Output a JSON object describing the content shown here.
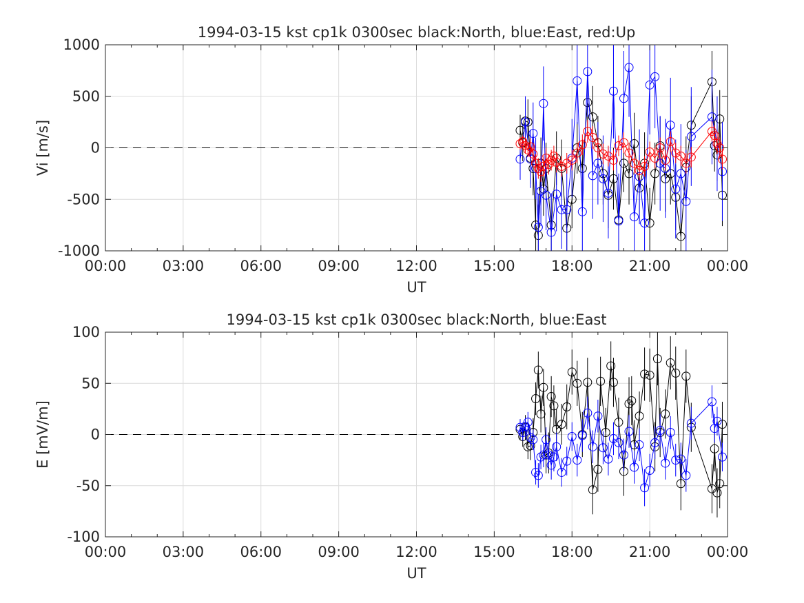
{
  "chart_data": [
    {
      "type": "scatter",
      "title": "1994-03-15 kst cp1k 0300sec black:North, blue:East, red:Up",
      "xlabel": "UT",
      "ylabel": "Vi [m/s]",
      "xlim": [
        0,
        24
      ],
      "ylim": [
        -1000,
        1000
      ],
      "xticks": [
        0,
        3,
        6,
        9,
        12,
        15,
        18,
        21,
        24
      ],
      "xtick_labels": [
        "00:00",
        "03:00",
        "06:00",
        "09:00",
        "12:00",
        "15:00",
        "18:00",
        "21:00",
        "00:00"
      ],
      "yticks": [
        -1000,
        -500,
        0,
        500,
        1000
      ],
      "ytick_labels": [
        "-1000",
        "-500",
        "0",
        "500",
        "1000"
      ],
      "grid": true,
      "zero_line": true,
      "series": [
        {
          "color": "#000000",
          "x": [
            16.0,
            16.1,
            16.2,
            16.3,
            16.4,
            16.5,
            16.6,
            16.7,
            16.8,
            16.9,
            17.0,
            17.2,
            17.4,
            17.6,
            17.8,
            18.0,
            18.2,
            18.4,
            18.6,
            18.8,
            19.0,
            19.2,
            19.4,
            19.6,
            19.8,
            20.0,
            20.2,
            20.4,
            20.6,
            20.8,
            21.0,
            21.2,
            21.4,
            21.6,
            21.8,
            22.0,
            22.2,
            22.4,
            22.6,
            23.4,
            23.5,
            23.6,
            23.7,
            23.8
          ],
          "y": [
            170,
            50,
            260,
            250,
            -100,
            -200,
            -750,
            -850,
            -150,
            -400,
            -200,
            -750,
            -100,
            -200,
            -780,
            -500,
            0,
            -200,
            440,
            300,
            50,
            -250,
            -460,
            -300,
            -700,
            -150,
            -250,
            40,
            -390,
            -150,
            -730,
            -250,
            20,
            -300,
            -250,
            -480,
            -860,
            -190,
            220,
            640,
            20,
            -70,
            280,
            -460
          ],
          "err": [
            150,
            180,
            200,
            220,
            250,
            260,
            280,
            300,
            250,
            260,
            250,
            300,
            260,
            280,
            300,
            280,
            250,
            280,
            320,
            300,
            260,
            300,
            320,
            300,
            340,
            280,
            300,
            300,
            320,
            300,
            340,
            300,
            280,
            320,
            300,
            320,
            340,
            300,
            280,
            300,
            250,
            250,
            280,
            300
          ]
        },
        {
          "color": "#0000ff",
          "x": [
            16.0,
            16.2,
            16.4,
            16.5,
            16.6,
            16.7,
            16.8,
            16.9,
            17.0,
            17.2,
            17.4,
            17.6,
            17.8,
            18.0,
            18.2,
            18.4,
            18.6,
            18.8,
            19.0,
            19.2,
            19.4,
            19.6,
            19.8,
            20.0,
            20.2,
            20.4,
            20.6,
            20.8,
            21.0,
            21.2,
            21.4,
            21.6,
            21.8,
            22.0,
            22.2,
            22.4,
            22.6,
            23.4,
            23.6,
            23.8
          ],
          "y": [
            -110,
            250,
            -110,
            140,
            -200,
            -770,
            -420,
            430,
            -460,
            -820,
            -450,
            -600,
            -600,
            -100,
            650,
            -620,
            740,
            -270,
            -150,
            -300,
            -440,
            550,
            -710,
            480,
            780,
            -670,
            -280,
            -730,
            610,
            690,
            -150,
            -200,
            220,
            -400,
            -250,
            -520,
            110,
            300,
            40,
            -230
          ],
          "err": [
            200,
            250,
            280,
            300,
            300,
            320,
            340,
            360,
            340,
            380,
            360,
            380,
            400,
            380,
            420,
            400,
            440,
            420,
            400,
            420,
            440,
            460,
            460,
            460,
            480,
            460,
            460,
            480,
            480,
            500,
            460,
            480,
            460,
            480,
            480,
            500,
            480,
            460,
            460,
            480
          ]
        },
        {
          "color": "#ff0000",
          "x": [
            16.0,
            16.1,
            16.2,
            16.3,
            16.4,
            16.5,
            16.6,
            16.7,
            16.8,
            16.9,
            17.0,
            17.1,
            17.2,
            17.3,
            17.4,
            17.6,
            17.8,
            18.0,
            18.2,
            18.4,
            18.6,
            18.8,
            19.0,
            19.2,
            19.4,
            19.6,
            19.8,
            20.0,
            20.2,
            20.4,
            20.6,
            20.8,
            21.0,
            21.2,
            21.4,
            21.6,
            21.8,
            22.0,
            22.2,
            22.4,
            22.6,
            23.4,
            23.5,
            23.6,
            23.7,
            23.8
          ],
          "y": [
            40,
            60,
            20,
            -20,
            10,
            -60,
            -150,
            -200,
            -230,
            -180,
            -100,
            -160,
            -120,
            -80,
            -140,
            -180,
            -150,
            -120,
            -50,
            30,
            160,
            100,
            0,
            -60,
            -80,
            -120,
            20,
            50,
            -50,
            -150,
            -220,
            -180,
            -40,
            -100,
            0,
            -120,
            60,
            -50,
            -80,
            -150,
            -90,
            160,
            120,
            40,
            0,
            -110
          ],
          "err": [
            60,
            60,
            70,
            70,
            80,
            90,
            90,
            100,
            100,
            100,
            100,
            100,
            100,
            100,
            100,
            100,
            100,
            100,
            100,
            100,
            110,
            110,
            100,
            100,
            100,
            100,
            100,
            100,
            100,
            100,
            100,
            100,
            100,
            100,
            100,
            100,
            100,
            100,
            100,
            100,
            100,
            100,
            100,
            100,
            100,
            100
          ]
        }
      ]
    },
    {
      "type": "scatter",
      "title": "1994-03-15 kst cp1k 0300sec black:North, blue:East",
      "xlabel": "UT",
      "ylabel": "E [mV/m]",
      "xlim": [
        0,
        24
      ],
      "ylim": [
        -100,
        100
      ],
      "xticks": [
        0,
        3,
        6,
        9,
        12,
        15,
        18,
        21,
        24
      ],
      "xtick_labels": [
        "00:00",
        "03:00",
        "06:00",
        "09:00",
        "12:00",
        "15:00",
        "18:00",
        "21:00",
        "00:00"
      ],
      "yticks": [
        -100,
        -50,
        0,
        50,
        100
      ],
      "ytick_labels": [
        "-100",
        "-50",
        "0",
        "50",
        "100"
      ],
      "grid": true,
      "zero_line": true,
      "series": [
        {
          "color": "#000000",
          "x": [
            16.0,
            16.1,
            16.2,
            16.3,
            16.4,
            16.5,
            16.6,
            16.7,
            16.8,
            16.9,
            17.0,
            17.1,
            17.2,
            17.3,
            17.4,
            17.6,
            17.8,
            18.0,
            18.2,
            18.4,
            18.6,
            18.8,
            19.0,
            19.1,
            19.3,
            19.5,
            19.6,
            19.8,
            20.0,
            20.2,
            20.3,
            20.4,
            20.6,
            20.8,
            21.0,
            21.2,
            21.3,
            21.4,
            21.6,
            21.8,
            22.0,
            22.2,
            22.4,
            22.6,
            23.4,
            23.5,
            23.6,
            23.7,
            23.8
          ],
          "y": [
            5,
            -2,
            7,
            -12,
            -11,
            2,
            35,
            63,
            20,
            46,
            -20,
            -18,
            37,
            28,
            5,
            10,
            27,
            61,
            50,
            0,
            51,
            -54,
            -34,
            52,
            2,
            67,
            51,
            12,
            -36,
            30,
            33,
            -10,
            18,
            59,
            58,
            -12,
            74,
            2,
            20,
            70,
            60,
            -48,
            57,
            7,
            -53,
            -14,
            -57,
            -48,
            10
          ],
          "err": [
            10,
            10,
            12,
            12,
            14,
            14,
            16,
            18,
            18,
            18,
            18,
            20,
            20,
            20,
            20,
            20,
            22,
            22,
            22,
            22,
            24,
            24,
            22,
            24,
            24,
            24,
            24,
            24,
            24,
            26,
            24,
            24,
            24,
            26,
            26,
            24,
            26,
            24,
            24,
            26,
            26,
            26,
            26,
            24,
            24,
            22,
            24,
            24,
            22
          ]
        },
        {
          "color": "#0000ff",
          "x": [
            16.0,
            16.1,
            16.2,
            16.3,
            16.4,
            16.5,
            16.6,
            16.7,
            16.8,
            16.9,
            17.0,
            17.1,
            17.2,
            17.3,
            17.4,
            17.6,
            17.8,
            18.0,
            18.2,
            18.4,
            18.6,
            18.8,
            19.0,
            19.2,
            19.4,
            19.6,
            19.8,
            20.0,
            20.2,
            20.4,
            20.6,
            20.8,
            21.0,
            21.2,
            21.4,
            21.6,
            21.8,
            22.0,
            22.2,
            22.4,
            22.6,
            23.4,
            23.5,
            23.6,
            23.8
          ],
          "y": [
            7,
            2,
            8,
            12,
            -3,
            -5,
            -37,
            -40,
            -22,
            -20,
            -5,
            -20,
            -30,
            -22,
            -12,
            -37,
            -26,
            -2,
            -25,
            -1,
            21,
            -12,
            18,
            -13,
            -24,
            -4,
            -8,
            -20,
            3,
            -32,
            -10,
            -52,
            -35,
            -8,
            4,
            -28,
            2,
            -25,
            -24,
            -40,
            11,
            32,
            6,
            13,
            -22
          ],
          "err": [
            8,
            8,
            8,
            10,
            10,
            10,
            12,
            12,
            12,
            12,
            12,
            12,
            14,
            14,
            14,
            14,
            14,
            14,
            16,
            16,
            16,
            16,
            16,
            16,
            16,
            16,
            16,
            16,
            16,
            16,
            16,
            18,
            16,
            16,
            16,
            16,
            16,
            16,
            16,
            16,
            16,
            16,
            14,
            14,
            14
          ]
        }
      ]
    }
  ]
}
